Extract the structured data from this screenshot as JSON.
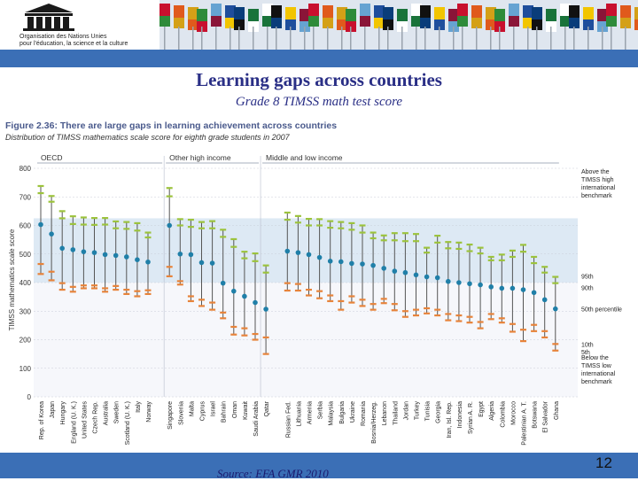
{
  "header": {
    "org_line1": "Organisation des Nations Unies",
    "org_line2": "pour l'éducation, la science et la culture"
  },
  "slide": {
    "title": "Learning gaps across countries",
    "subtitle": "Grade 8 TIMSS math test score",
    "source": "Source: EFA GMR 2010",
    "page_number": "12"
  },
  "colors": {
    "blue_bar": "#3b6fb6",
    "title": "#2a2f86",
    "figure_title": "#4a5a8c",
    "high_band": "#dde9f4",
    "mean_dot": "#1f7fa8",
    "upper_marker": "#9cc33c",
    "lower_marker": "#e7833a",
    "whisker": "#555555"
  },
  "chart_data": {
    "type": "scatter",
    "figure_title": "Figure 2.36: There are large gaps in learning achievement across countries",
    "figure_subtitle": "Distribution of TIMSS mathematics scale score for eighth grade students in 2007",
    "ylabel": "TIMSS mathematics scale score",
    "ylim": [
      0,
      800
    ],
    "yticks": [
      0,
      100,
      200,
      300,
      400,
      500,
      600,
      700,
      800
    ],
    "groups": [
      {
        "name": "OECD",
        "start": 0,
        "end": 11
      },
      {
        "name": "Other high income",
        "start": 12,
        "end": 20
      },
      {
        "name": "Middle and low income",
        "start": 21,
        "end": 48
      }
    ],
    "legend": {
      "above": "Above the TIMSS high international benchmark",
      "p95": "95th",
      "p90": "90th",
      "p50": "50th percentile",
      "p10": "10th",
      "p5": "5th",
      "below": "Below the TIMSS low international benchmark"
    },
    "countries": [
      "Rep. of Korea",
      "Japan",
      "Hungary",
      "England (U. K.)",
      "United States",
      "Czech Rep.",
      "Australia",
      "Sweden",
      "Scotland (U. K.)",
      "Italy",
      "Norway",
      "",
      "Singapore",
      "Slovenia",
      "Malta",
      "Cyprus",
      "Israel",
      "Bahrain",
      "Oman",
      "Kuwait",
      "Saudi Arabia",
      "Qatar",
      "",
      "Russian Fed.",
      "Lithuania",
      "Armenia",
      "Serbia",
      "Malaysia",
      "Bulgaria",
      "Ukraine",
      "Romania",
      "Bosnia/Herzeg.",
      "Lebanon",
      "Thailand",
      "Jordan",
      "Turkey",
      "Tunisia",
      "Georgia",
      "Iran, Isl. Rep.",
      "Indonesia",
      "Syrian A. R.",
      "Egypt",
      "Algeria",
      "Colombia",
      "Morocco",
      "Palestinian A. T.",
      "Botswana",
      "El Salvador",
      "Ghana"
    ],
    "series": [
      {
        "name": "95th",
        "values": [
          738,
          703,
          650,
          632,
          628,
          626,
          626,
          614,
          612,
          608,
          575,
          null,
          731,
          622,
          620,
          612,
          615,
          585,
          552,
          508,
          502,
          460,
          null,
          645,
          633,
          623,
          622,
          615,
          612,
          608,
          600,
          575,
          565,
          573,
          573,
          570,
          522,
          564,
          542,
          540,
          533,
          522,
          490,
          498,
          512,
          532,
          490,
          455,
          420
        ]
      },
      {
        "name": "90th",
        "values": [
          713,
          683,
          625,
          605,
          603,
          602,
          603,
          590,
          588,
          582,
          558,
          null,
          702,
          600,
          595,
          590,
          590,
          560,
          525,
          485,
          475,
          435,
          null,
          620,
          610,
          600,
          600,
          592,
          590,
          585,
          575,
          555,
          548,
          548,
          545,
          545,
          505,
          540,
          520,
          518,
          510,
          502,
          478,
          478,
          490,
          508,
          468,
          435,
          398
        ]
      },
      {
        "name": "50th percentile",
        "values": [
          603,
          570,
          520,
          515,
          508,
          505,
          498,
          495,
          490,
          480,
          472,
          null,
          600,
          500,
          498,
          470,
          468,
          398,
          370,
          352,
          330,
          307,
          null,
          510,
          505,
          498,
          488,
          475,
          473,
          467,
          465,
          460,
          450,
          440,
          435,
          427,
          420,
          417,
          404,
          400,
          396,
          392,
          385,
          380,
          380,
          375,
          365,
          340,
          308
        ]
      },
      {
        "name": "10th",
        "values": [
          465,
          438,
          398,
          385,
          390,
          390,
          380,
          388,
          375,
          370,
          373,
          null,
          455,
          405,
          352,
          340,
          330,
          295,
          245,
          240,
          220,
          208,
          null,
          398,
          395,
          375,
          370,
          355,
          335,
          352,
          340,
          325,
          343,
          325,
          300,
          305,
          310,
          305,
          290,
          285,
          280,
          262,
          290,
          275,
          255,
          235,
          252,
          230,
          185
        ]
      },
      {
        "name": "5th",
        "values": [
          430,
          408,
          375,
          368,
          380,
          380,
          368,
          375,
          360,
          352,
          360,
          null,
          422,
          393,
          335,
          318,
          305,
          275,
          218,
          215,
          200,
          150,
          null,
          372,
          372,
          355,
          345,
          335,
          305,
          330,
          318,
          305,
          328,
          303,
          280,
          285,
          292,
          285,
          268,
          265,
          260,
          240,
          272,
          260,
          228,
          195,
          230,
          208,
          162
        ]
      }
    ]
  }
}
